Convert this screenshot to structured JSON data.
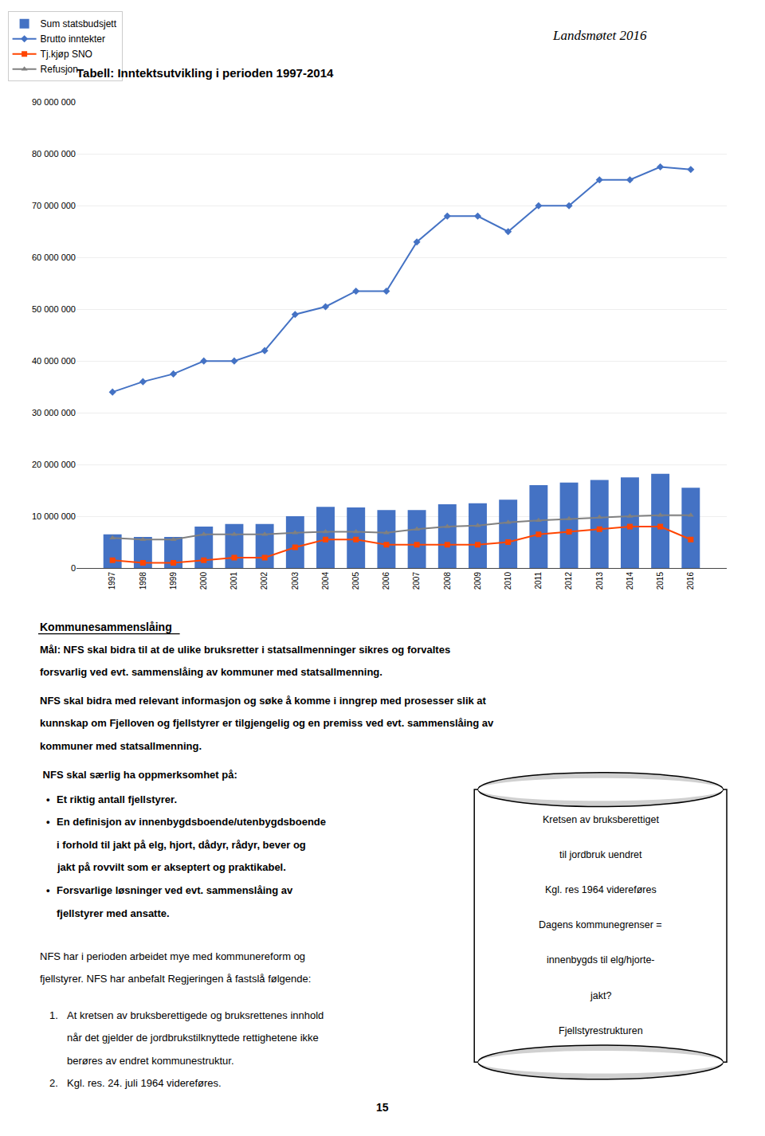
{
  "chart_data": {
    "type": "bar",
    "title": "Tabell: Inntektsutvikling i perioden 1997-2014",
    "categories": [
      "1997",
      "1998",
      "1999",
      "2000",
      "2001",
      "2002",
      "2003",
      "2004",
      "2005",
      "2006",
      "2007",
      "2008",
      "2009",
      "2010",
      "2011",
      "2012",
      "2013",
      "2014",
      "2015",
      "2016"
    ],
    "series": [
      {
        "name": "Sum statsbudsjett",
        "type": "bar",
        "color": "#4472c4",
        "values": [
          6500000,
          6000000,
          6000000,
          8000000,
          8500000,
          8500000,
          10000000,
          11800000,
          11700000,
          11200000,
          11200000,
          12300000,
          12500000,
          13200000,
          16000000,
          16500000,
          17000000,
          17500000,
          18200000,
          15500000
        ]
      },
      {
        "name": "Brutto inntekter",
        "type": "line",
        "color": "#4472c4",
        "marker": "diamond",
        "values": [
          34000000,
          36000000,
          37500000,
          40000000,
          40000000,
          42000000,
          49000000,
          50500000,
          53500000,
          53500000,
          63000000,
          68000000,
          68000000,
          65000000,
          70000000,
          70000000,
          75000000,
          75000000,
          77500000,
          77000000
        ]
      },
      {
        "name": "Tj.kjøp SNO",
        "type": "line",
        "color": "#ff4500",
        "marker": "square",
        "values": [
          1500000,
          1000000,
          1000000,
          1500000,
          2000000,
          2000000,
          4000000,
          5500000,
          5500000,
          4500000,
          4500000,
          4500000,
          4500000,
          5000000,
          6500000,
          7000000,
          7500000,
          8000000,
          8000000,
          5500000
        ]
      },
      {
        "name": "Refusjon",
        "type": "line",
        "color": "#808080",
        "marker": "triangle-up",
        "values": [
          5800000,
          5500000,
          5500000,
          6500000,
          6500000,
          6500000,
          6800000,
          7000000,
          7000000,
          6800000,
          7500000,
          8000000,
          8200000,
          8800000,
          9200000,
          9500000,
          9800000,
          10000000,
          10200000,
          10200000
        ]
      }
    ],
    "ylim": [
      0,
      90000000
    ],
    "yticks": [
      0,
      {
        "value": 10000000,
        "label": "10 000 000"
      },
      {
        "value": 20000000,
        "label": "20 000 000"
      },
      {
        "value": 30000000,
        "label": "30 000 000"
      },
      {
        "value": 40000000,
        "label": "40 000 000"
      },
      {
        "value": 50000000,
        "label": "50 000 000"
      },
      {
        "value": 60000000,
        "label": "60 000 000"
      },
      {
        "value": 70000000,
        "label": "70 000 000"
      },
      {
        "value": 80000000,
        "label": "80 000 000"
      },
      {
        "value": 90000000,
        "label": "90 000 000"
      }
    ],
    "grid": true,
    "legend": "upper left",
    "annotations": [
      "Kommunesammenslåing",
      "Mål: NFS skal bidra til at de ulike bruksretter i statsallmenninger sikres og forvaltes",
      "forsvarlig ved evt. sammenslåing av kommuner med statsallmenning.",
      "NFS skal bidra med relevant informasjon og søke å komme i inngrep med prosesser slik at",
      "kunnskap om Fjelloven og fjellstyrer er tilgjengelig og en premiss ved evt. sammenslåing av",
      "kommuner med statsallmenning.",
      " NFS skal særlig ha oppmerksomhet på:",
      "•",
      "Et riktig antall fjellstyrer.",
      "•",
      "En definisjon av innenbygdsboende/utenbygdsboende",
      "i forhold til jakt på elg, hjort, dådyr, rådyr, bever og",
      "jakt på rovvilt som er akseptert og praktikabel.",
      "•",
      "Forsvarlige løsninger ved evt. sammenslåing av",
      "fjellstyrer med ansatte.",
      "NFS har i perioden arbeidet mye med kommunereform og",
      "fjellstyrer. NFS har anbefalt Regjeringen å fastslå følgende:",
      "1.",
      "At kretsen av bruksberettigede og bruksrettenes innhold",
      "når det gjelder de jordbrukstilknyttede rettighetene ikke",
      "berøres av endret kommunestruktur.",
      "2.",
      "Kgl. res. 24. juli 1964 videreføres.",
      "Kretsen av bruksberettiget",
      "til jordbruk uendret",
      "Kgl. res 1964 videreføres",
      "Dagens kommunegrenser =",
      "innenbygds til elg/hjorte-",
      "jakt?",
      "Fjellstyrestrukturen",
      "Landsmøtet 2016",
      "15"
    ]
  }
}
